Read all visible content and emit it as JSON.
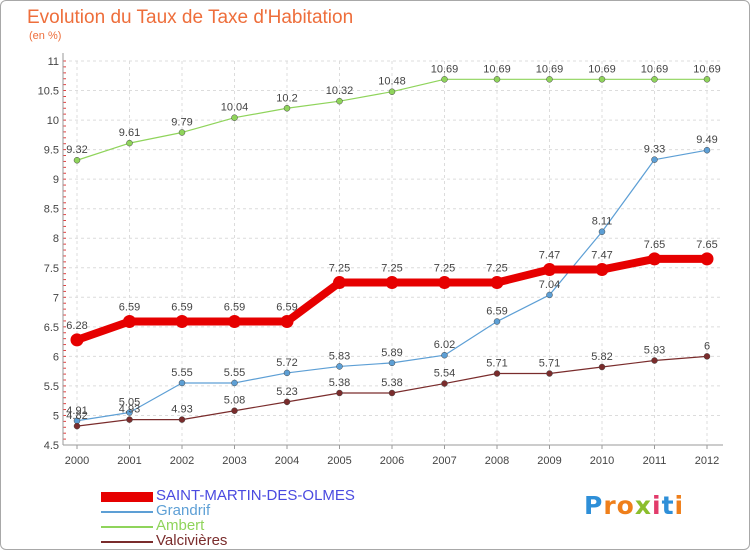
{
  "chart_data": {
    "type": "line",
    "title": "Evolution du Taux de Taxe d'Habitation",
    "subtitle": "(en %)",
    "xlabel": "",
    "ylabel": "",
    "x": [
      "2000",
      "2001",
      "2002",
      "2003",
      "2004",
      "2005",
      "2006",
      "2007",
      "2008",
      "2009",
      "2010",
      "2011",
      "2012"
    ],
    "ylim": [
      4.5,
      11
    ],
    "yticks": [
      "4.5",
      "5",
      "5.5",
      "6",
      "6.5",
      "7",
      "7.5",
      "8",
      "8.5",
      "9",
      "9.5",
      "10",
      "10.5",
      "11"
    ],
    "grid": true,
    "legend_position": "bottom-left",
    "series": [
      {
        "name": "SAINT-MARTIN-DES-OLMES",
        "color": "#e60000",
        "values": [
          6.28,
          6.59,
          6.59,
          6.59,
          6.59,
          7.25,
          7.25,
          7.25,
          7.25,
          7.47,
          7.47,
          7.65,
          7.65
        ],
        "labels": [
          "6.28",
          "6.59",
          "6.59",
          "6.59",
          "6.59",
          "7.25",
          "7.25",
          "7.25",
          "7.25",
          "7.47",
          "7.47",
          "7.65",
          "7.65"
        ]
      },
      {
        "name": "Grandrif",
        "color": "#5d9fd5",
        "values": [
          4.91,
          5.05,
          5.55,
          5.55,
          5.72,
          5.83,
          5.89,
          6.02,
          6.59,
          7.04,
          8.11,
          9.33,
          9.49
        ],
        "labels": [
          "4.91",
          "5.05",
          "5.55",
          "5.55",
          "5.72",
          "5.83",
          "5.89",
          "6.02",
          "6.59",
          "7.04",
          "8.11",
          "9.33",
          "9.49"
        ]
      },
      {
        "name": "Ambert",
        "color": "#8fd45b",
        "values": [
          9.32,
          9.61,
          9.79,
          10.04,
          10.2,
          10.32,
          10.48,
          10.69,
          10.69,
          10.69,
          10.69,
          10.69,
          10.69
        ],
        "labels": [
          "9.32",
          "9.61",
          "9.79",
          "10.04",
          "10.2",
          "10.32",
          "10.48",
          "10.69",
          "10.69",
          "10.69",
          "10.69",
          "10.69",
          "10.69"
        ]
      },
      {
        "name": "Valcivières",
        "color": "#7a2c2c",
        "values": [
          4.82,
          4.93,
          4.93,
          5.08,
          5.23,
          5.38,
          5.38,
          5.54,
          5.71,
          5.71,
          5.82,
          5.93,
          6
        ],
        "labels": [
          "4.82",
          "4.93",
          "4.93",
          "5.08",
          "5.23",
          "5.38",
          "5.38",
          "5.54",
          "5.71",
          "5.71",
          "5.82",
          "5.93",
          "6"
        ]
      }
    ]
  },
  "branding": {
    "logo_text": "Proxiti",
    "logo_colors": [
      "#2e8fd8",
      "#ef7f1a",
      "#ef7f1a",
      "#8bbe2c",
      "#e23b6b",
      "#2e8fd8",
      "#ef7f1a"
    ]
  }
}
